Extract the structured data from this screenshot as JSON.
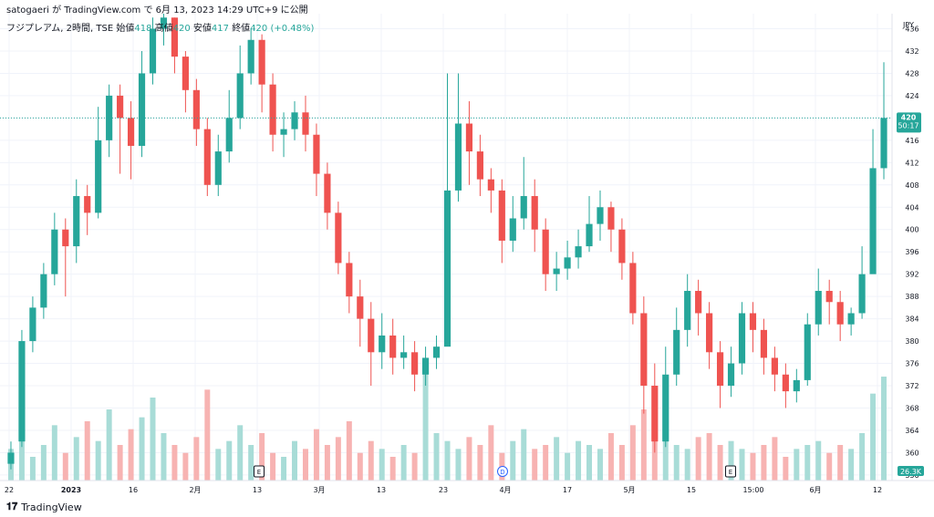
{
  "caption": "satogaeri が TradingView.com で 6月 13, 2023 14:29 UTC+9 に公開",
  "legend": {
    "symbol": "フジプレアム, 2時間, TSE",
    "open_label": "始値",
    "open": "418",
    "high_label": "高値",
    "high": "420",
    "low_label": "安値",
    "low": "417",
    "close_label": "終値",
    "close": "420",
    "change": "(+0.48%)"
  },
  "brand": "TradingView",
  "colors": {
    "up": "#26a69a",
    "down": "#ef5350",
    "up_vol": "#a8dcd7",
    "down_vol": "#f7b3b2",
    "grid": "#f0f3fa",
    "axis_text": "#131722"
  },
  "chart_data": {
    "type": "candlestick",
    "currency_label": "JPY",
    "y_ticks": [
      436,
      432,
      428,
      424,
      420,
      416,
      412,
      408,
      404,
      400,
      396,
      392,
      388,
      384,
      380,
      376,
      372,
      368,
      364,
      360,
      356
    ],
    "ylim": [
      355,
      438.7
    ],
    "x_ticks": [
      "22",
      "2023",
      "16",
      "2月",
      "13",
      "3月",
      "13",
      "23",
      "4月",
      "17",
      "5月",
      "15",
      "15:00",
      "6月",
      "12"
    ],
    "last_price": "420",
    "countdown": "50:17",
    "volume_label": "26.3K",
    "markers": [
      "E",
      "D",
      "E"
    ],
    "approx_ohlc": [
      [
        358,
        360,
        362,
        357
      ],
      [
        362,
        380,
        382,
        361
      ],
      [
        380,
        386,
        388,
        378
      ],
      [
        386,
        392,
        394,
        384
      ],
      [
        392,
        400,
        403,
        390
      ],
      [
        400,
        397,
        402,
        388
      ],
      [
        397,
        406,
        409,
        394
      ],
      [
        406,
        403,
        408,
        399
      ],
      [
        403,
        416,
        422,
        402
      ],
      [
        416,
        424,
        426,
        413
      ],
      [
        424,
        420,
        426,
        410
      ],
      [
        420,
        415,
        423,
        409
      ],
      [
        415,
        428,
        432,
        413
      ],
      [
        428,
        436,
        438,
        426
      ],
      [
        436,
        438,
        438.7,
        433
      ],
      [
        438,
        431,
        438,
        428
      ],
      [
        431,
        425,
        432,
        421
      ],
      [
        425,
        418,
        427,
        415
      ],
      [
        418,
        408,
        420,
        406
      ],
      [
        408,
        414,
        417,
        406
      ],
      [
        414,
        420,
        425,
        412
      ],
      [
        420,
        428,
        433,
        418
      ],
      [
        428,
        434,
        436,
        426
      ],
      [
        434,
        426,
        435,
        421
      ],
      [
        426,
        417,
        428,
        414
      ],
      [
        417,
        418,
        421,
        413
      ],
      [
        418,
        421,
        423,
        416
      ],
      [
        421,
        417,
        424,
        414
      ],
      [
        417,
        410,
        419,
        406
      ],
      [
        410,
        403,
        412,
        400
      ],
      [
        403,
        394,
        405,
        392
      ],
      [
        394,
        388,
        396,
        385
      ],
      [
        388,
        384,
        391,
        379
      ],
      [
        384,
        378,
        387,
        372
      ],
      [
        378,
        381,
        385,
        375
      ],
      [
        381,
        377,
        384,
        374
      ],
      [
        377,
        378,
        381,
        375
      ],
      [
        378,
        374,
        380,
        371
      ],
      [
        374,
        377,
        379,
        372
      ],
      [
        377,
        379,
        381,
        375
      ],
      [
        379,
        407,
        428,
        398
      ],
      [
        407,
        419,
        428,
        405
      ],
      [
        419,
        414,
        423,
        408
      ],
      [
        414,
        409,
        417,
        406
      ],
      [
        409,
        407,
        411,
        403
      ],
      [
        407,
        398,
        409,
        394
      ],
      [
        398,
        402,
        406,
        396
      ],
      [
        402,
        406,
        413,
        400
      ],
      [
        406,
        400,
        409,
        396
      ],
      [
        400,
        392,
        402,
        389
      ],
      [
        392,
        393,
        396,
        389
      ],
      [
        393,
        395,
        398,
        391
      ],
      [
        395,
        397,
        400,
        393
      ],
      [
        397,
        401,
        406,
        396
      ],
      [
        401,
        404,
        407,
        398
      ],
      [
        404,
        400,
        405,
        396
      ],
      [
        400,
        394,
        402,
        391
      ],
      [
        394,
        385,
        396,
        383
      ],
      [
        385,
        372,
        388,
        367
      ],
      [
        372,
        362,
        376,
        360
      ],
      [
        362,
        374,
        379,
        361
      ],
      [
        374,
        382,
        386,
        372
      ],
      [
        382,
        389,
        392,
        379
      ],
      [
        389,
        385,
        391,
        381
      ],
      [
        385,
        378,
        387,
        375
      ],
      [
        378,
        372,
        380,
        368
      ],
      [
        372,
        376,
        379,
        370
      ],
      [
        376,
        385,
        387,
        374
      ],
      [
        385,
        382,
        387,
        378
      ],
      [
        382,
        377,
        384,
        374
      ],
      [
        377,
        374,
        379,
        371
      ],
      [
        374,
        371,
        376,
        368
      ],
      [
        371,
        373,
        375,
        369
      ],
      [
        373,
        383,
        385,
        372
      ],
      [
        383,
        389,
        393,
        381
      ],
      [
        389,
        387,
        391,
        383
      ],
      [
        387,
        383,
        389,
        380
      ],
      [
        383,
        385,
        386,
        381
      ],
      [
        385,
        392,
        397,
        384
      ],
      [
        392,
        411,
        418,
        394
      ],
      [
        411,
        420,
        430,
        409
      ]
    ],
    "approx_volume_k": [
      8,
      12,
      6,
      9,
      14,
      7,
      11,
      15,
      10,
      18,
      9,
      13,
      16,
      21,
      12,
      9,
      7,
      11,
      23,
      8,
      10,
      14,
      9,
      12,
      7,
      6,
      10,
      8,
      13,
      9,
      11,
      15,
      7,
      10,
      8,
      6,
      9,
      7,
      30,
      12,
      10,
      8,
      11,
      9,
      14,
      7,
      10,
      13,
      8,
      9,
      11,
      7,
      10,
      9,
      8,
      12,
      9,
      14,
      18,
      13,
      10,
      9,
      8,
      11,
      12,
      9,
      10,
      8,
      7,
      9,
      11,
      6,
      8,
      9,
      10,
      7,
      9,
      8,
      12,
      22,
      26.3
    ]
  }
}
